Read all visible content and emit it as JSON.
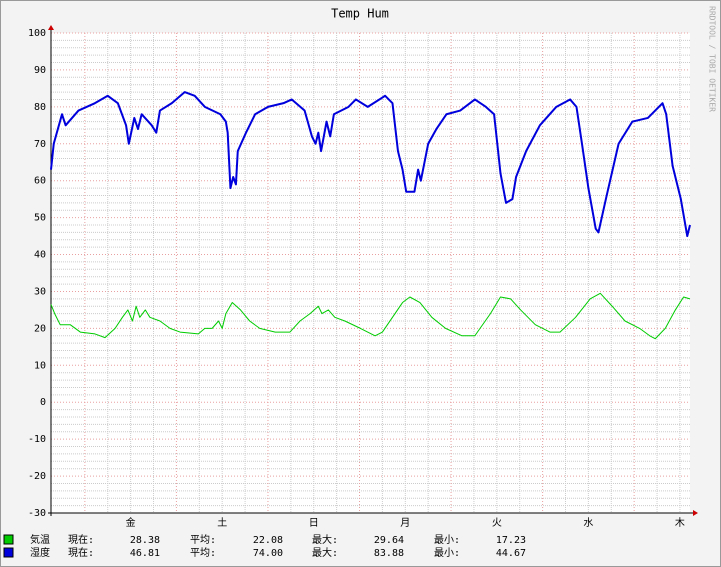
{
  "chart_data": {
    "type": "line",
    "title": "Temp Hum",
    "watermark": "RRDTOOL / TOBI OETIKER",
    "grid": true,
    "xlim": [
      0,
      6.98
    ],
    "xticks": [
      {
        "value": 0.87,
        "label": "金"
      },
      {
        "value": 1.87,
        "label": "土"
      },
      {
        "value": 2.87,
        "label": "日"
      },
      {
        "value": 3.87,
        "label": "月"
      },
      {
        "value": 4.87,
        "label": "火"
      },
      {
        "value": 5.87,
        "label": "水"
      },
      {
        "value": 6.87,
        "label": "木"
      }
    ],
    "ylim": [
      -30,
      100
    ],
    "yticks": [
      -30,
      -20,
      -10,
      0,
      10,
      20,
      30,
      40,
      50,
      60,
      70,
      80,
      90,
      100
    ],
    "series": [
      {
        "name": "気温",
        "color": "#00cc00",
        "width": 1,
        "x": [
          0,
          0.04,
          0.1,
          0.21,
          0.32,
          0.48,
          0.59,
          0.7,
          0.78,
          0.84,
          0.89,
          0.93,
          0.97,
          1.03,
          1.08,
          1.19,
          1.3,
          1.41,
          1.61,
          1.68,
          1.76,
          1.83,
          1.87,
          1.91,
          1.98,
          2.07,
          2.17,
          2.28,
          2.45,
          2.61,
          2.72,
          2.83,
          2.92,
          2.96,
          3.03,
          3.1,
          3.21,
          3.38,
          3.54,
          3.62,
          3.73,
          3.84,
          3.92,
          4.03,
          4.16,
          4.31,
          4.49,
          4.63,
          4.8,
          4.91,
          5.02,
          5.13,
          5.29,
          5.45,
          5.56,
          5.73,
          5.89,
          6.0,
          6.13,
          6.27,
          6.43,
          6.54,
          6.6,
          6.71,
          6.82,
          6.91,
          6.98
        ],
        "values": [
          26.5,
          24,
          21,
          21,
          19,
          18.5,
          17.5,
          20,
          23,
          25,
          22,
          26,
          23,
          25,
          23,
          22,
          20,
          19,
          18.5,
          20,
          20,
          22,
          20,
          24,
          27,
          25,
          22,
          20,
          19,
          19,
          22,
          24,
          26,
          24,
          25,
          23,
          22,
          20,
          18,
          19,
          23,
          27,
          28.5,
          27,
          23,
          20,
          18,
          18,
          24,
          28.5,
          28,
          25,
          21,
          19,
          19,
          23,
          28,
          29.5,
          26,
          22,
          20,
          18,
          17.2,
          20,
          25,
          28.5,
          28
        ]
      },
      {
        "name": "湿度",
        "color": "#0000dd",
        "width": 2,
        "x": [
          0,
          0.03,
          0.12,
          0.16,
          0.3,
          0.48,
          0.62,
          0.73,
          0.82,
          0.85,
          0.91,
          0.95,
          0.99,
          1.1,
          1.15,
          1.19,
          1.32,
          1.46,
          1.57,
          1.68,
          1.85,
          1.91,
          1.93,
          1.96,
          1.99,
          2.02,
          2.04,
          2.13,
          2.23,
          2.37,
          2.54,
          2.63,
          2.77,
          2.85,
          2.89,
          2.92,
          2.95,
          3.01,
          3.05,
          3.09,
          3.25,
          3.33,
          3.46,
          3.65,
          3.73,
          3.79,
          3.84,
          3.88,
          3.97,
          4.01,
          4.04,
          4.12,
          4.21,
          4.32,
          4.47,
          4.63,
          4.75,
          4.84,
          4.91,
          4.97,
          5.04,
          5.08,
          5.19,
          5.34,
          5.52,
          5.67,
          5.74,
          5.8,
          5.87,
          5.95,
          5.98,
          6.07,
          6.2,
          6.35,
          6.52,
          6.68,
          6.72,
          6.79,
          6.88,
          6.95,
          6.98
        ],
        "values": [
          63,
          70,
          78,
          75,
          79,
          81,
          83,
          81,
          75,
          70,
          77,
          74,
          78,
          75,
          73,
          79,
          81,
          84,
          83,
          80,
          78,
          76,
          73,
          58,
          61,
          59,
          68,
          73,
          78,
          80,
          81,
          82,
          79,
          72,
          70,
          73,
          68,
          76,
          72,
          78,
          80,
          82,
          80,
          83,
          81,
          68,
          63,
          57,
          57,
          63,
          60,
          70,
          74,
          78,
          79,
          82,
          80,
          78,
          62,
          54,
          55,
          61,
          68,
          75,
          80,
          82,
          80,
          70,
          58,
          47,
          46,
          56,
          70,
          76,
          77,
          81,
          78,
          64,
          55,
          45,
          48
        ]
      }
    ],
    "legend": {
      "stat_labels": [
        "現在:",
        "平均:",
        "最大:",
        "最小:"
      ],
      "rows": [
        [
          "28.38",
          "22.08",
          "29.64",
          "17.23"
        ],
        [
          "46.81",
          "74.00",
          "83.88",
          "44.67"
        ]
      ]
    }
  }
}
